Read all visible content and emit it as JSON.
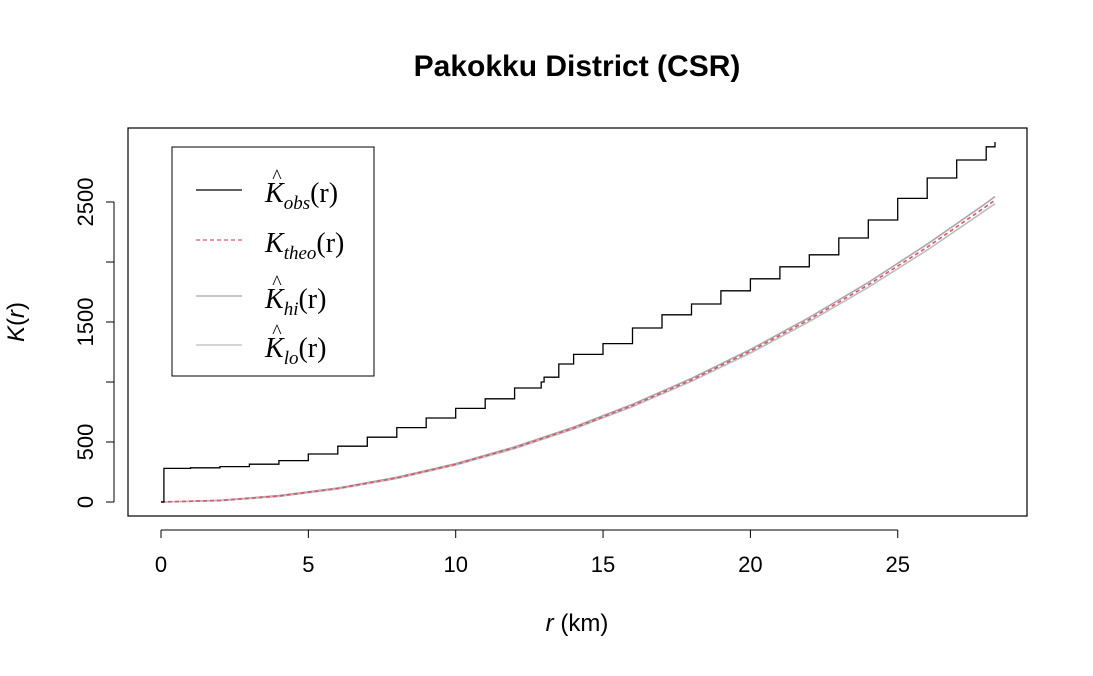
{
  "chart_data": {
    "type": "line",
    "title": "Pakokku District (CSR)",
    "xlabel": {
      "var": "r",
      "unit": " (km)"
    },
    "ylabel": {
      "var": "K",
      "open": "(",
      "arg": "r",
      "close": ")"
    },
    "xlim": [
      0,
      28.3
    ],
    "ylim": [
      0,
      3000
    ],
    "xticks": [
      0,
      5,
      10,
      15,
      20,
      25
    ],
    "yticks": [
      0,
      500,
      1000,
      1500,
      2000,
      2500
    ],
    "yticklabels": [
      "0",
      "500",
      "",
      "1500",
      "",
      "2500"
    ],
    "legend_position": "top-left",
    "series": [
      {
        "name": {
          "base": "K",
          "hat": "^",
          "sub": "obs",
          "arg": "(r)"
        },
        "color": "#000000",
        "dash": "solid",
        "x": [
          0,
          0.1,
          1,
          2,
          3,
          4,
          5,
          6,
          7,
          8,
          9,
          10,
          11,
          12,
          12.9,
          13,
          13.5,
          14,
          15,
          16,
          17,
          18,
          19,
          20,
          21,
          22,
          23,
          24,
          25,
          26,
          27,
          28,
          28.3
        ],
        "y": [
          0,
          280,
          285,
          295,
          315,
          345,
          400,
          465,
          540,
          620,
          700,
          780,
          860,
          950,
          1000,
          1040,
          1150,
          1230,
          1320,
          1450,
          1560,
          1650,
          1760,
          1860,
          1960,
          2060,
          2200,
          2350,
          2530,
          2700,
          2850,
          2960,
          3000
        ]
      },
      {
        "name": {
          "base": "K",
          "hat": "",
          "sub": "theo",
          "arg": "(r)"
        },
        "color": "#df536b",
        "dash": "dashed",
        "x": [
          0,
          2,
          4,
          6,
          8,
          10,
          12,
          14,
          16,
          18,
          20,
          22,
          24,
          26,
          28,
          28.3
        ],
        "y": [
          0,
          12.6,
          50.3,
          113.1,
          201.1,
          314.2,
          452.4,
          615.8,
          804.2,
          1017.9,
          1256.6,
          1520.5,
          1809.6,
          2123.7,
          2463.0,
          2516.1
        ]
      },
      {
        "name": {
          "base": "K",
          "hat": "^",
          "sub": "hi",
          "arg": "(r)"
        },
        "color": "#a8a8a8",
        "dash": "solid",
        "x": [
          0,
          2,
          4,
          6,
          8,
          10,
          12,
          14,
          16,
          18,
          20,
          22,
          24,
          26,
          28,
          28.3
        ],
        "y": [
          0,
          14,
          53,
          117,
          206,
          320,
          459,
          624,
          814,
          1030,
          1271,
          1538,
          1830,
          2148,
          2491,
          2546
        ]
      },
      {
        "name": {
          "base": "K",
          "hat": "^",
          "sub": "lo",
          "arg": "(r)"
        },
        "color": "#bdbdbd",
        "dash": "solid",
        "x": [
          0,
          2,
          4,
          6,
          8,
          10,
          12,
          14,
          16,
          18,
          20,
          22,
          24,
          26,
          28,
          28.3
        ],
        "y": [
          0,
          11,
          47,
          109,
          196,
          308,
          445,
          608,
          795,
          1006,
          1242,
          1503,
          1789,
          2099,
          2435,
          2486
        ]
      }
    ]
  }
}
